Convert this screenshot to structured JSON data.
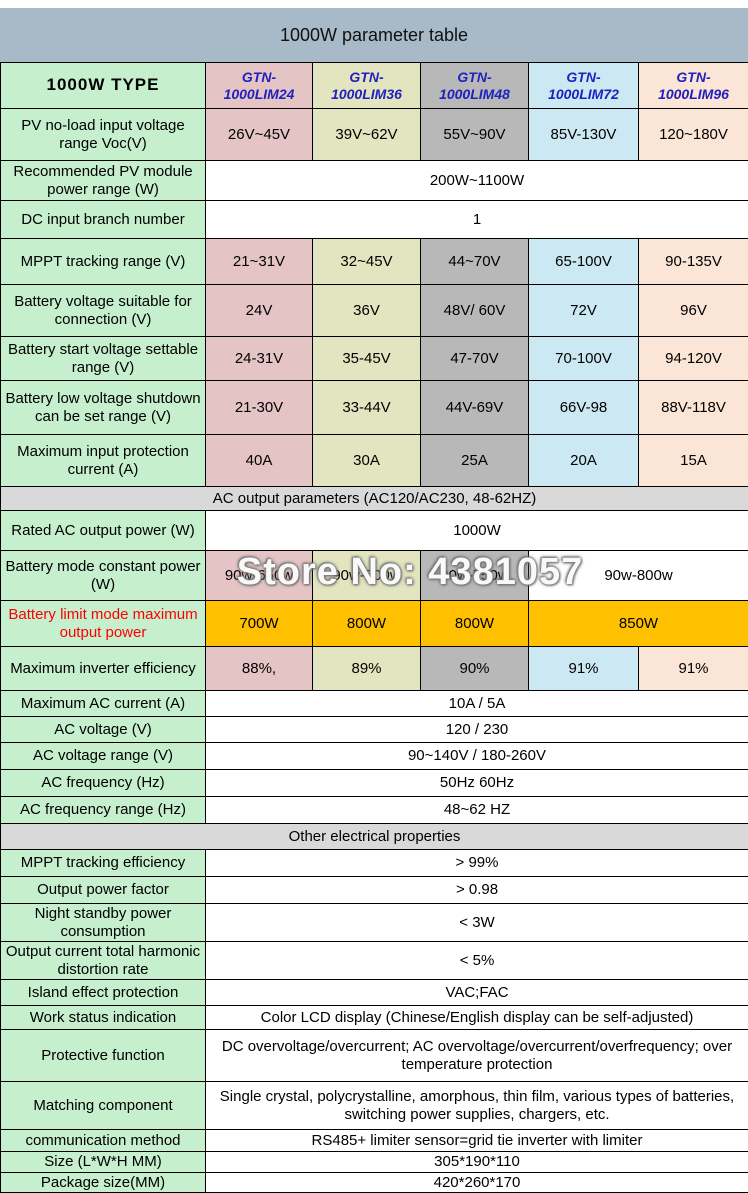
{
  "title": "1000W parameter table",
  "watermark": "Store No: 4381057",
  "colors": {
    "title_bar": "#a8b9c7",
    "label_green": "#c6efce",
    "column_lim24": "#e5c4c6",
    "column_lim36": "#e2e5bf",
    "column_lim48": "#b8b8b8",
    "column_lim72": "#cbe8f3",
    "column_lim96": "#fbe5d6",
    "section_gray": "#d9d9d9",
    "highlight_gold": "#ffc000",
    "model_text_blue": "#2121bd",
    "alert_text_red": "#ff0000"
  },
  "columns": {
    "label_header": "1000W TYPE",
    "models": [
      "GTN-\n1000LIM24",
      "GTN-\n1000LIM36",
      "GTN-\n1000LIM48",
      "GTN-\n1000LIM72",
      "GTN-\n1000LIM96"
    ]
  },
  "rows": [
    {
      "kind": "values",
      "label": "PV no-load input voltage range Voc(V)",
      "values": [
        "26V~45V",
        "39V~62V",
        "55V~90V",
        "85V-130V",
        "120~180V"
      ],
      "h": 52
    },
    {
      "kind": "merged",
      "label": "Recommended PV module power range (W)",
      "value": "200W~1100W",
      "h": 40
    },
    {
      "kind": "merged",
      "label": "DC input branch number",
      "value": "1",
      "h": 38
    },
    {
      "kind": "values",
      "label": "MPPT tracking range (V)",
      "values": [
        "21~31V",
        "32~45V",
        "44~70V",
        "65-100V",
        "90-135V"
      ],
      "h": 46
    },
    {
      "kind": "values",
      "label": "Battery voltage suitable for connection (V)",
      "values": [
        "24V",
        "36V",
        "48V/ 60V",
        "72V",
        "96V"
      ],
      "h": 52
    },
    {
      "kind": "values",
      "label": "Battery start voltage settable range (V)",
      "values": [
        "24-31V",
        "35-45V",
        "47-70V",
        "70-100V",
        "94-120V"
      ],
      "h": 44
    },
    {
      "kind": "values",
      "label": "Battery low voltage shutdown can be set range (V)",
      "values": [
        "21-30V",
        "33-44V",
        "44V-69V",
        "66V-98",
        "88V-118V"
      ],
      "h": 54
    },
    {
      "kind": "values",
      "label": "Maximum input protection current (A)",
      "values": [
        "40A",
        "30A",
        "25A",
        "20A",
        "15A"
      ],
      "h": 52
    },
    {
      "kind": "section",
      "label": "AC output parameters (AC120/AC230, 48-62HZ)",
      "h": 24
    },
    {
      "kind": "merged",
      "label": "Rated AC output power (W)",
      "value": "1000W",
      "h": 40
    },
    {
      "kind": "values",
      "label": "Battery mode constant power (W)",
      "values": [
        "90w-650w",
        "90w-700w",
        "90w-750w"
      ],
      "merged_value": "90w-800w",
      "h": 50
    },
    {
      "kind": "values",
      "label": "Battery limit mode maximum output power",
      "label_style": "red",
      "value_bg": "gold",
      "values": [
        "700W",
        "800W",
        "800W"
      ],
      "merged_value": "850W",
      "h": 46
    },
    {
      "kind": "values",
      "label": "Maximum inverter efficiency",
      "values": [
        "88%,",
        "89%",
        "90%",
        "91%",
        "91%"
      ],
      "h": 44
    },
    {
      "kind": "merged",
      "label": "Maximum AC current (A)",
      "value": "10A / 5A",
      "h": 26
    },
    {
      "kind": "merged",
      "label": "AC voltage (V)",
      "value": "120 / 230",
      "h": 26
    },
    {
      "kind": "merged",
      "label": "AC voltage range (V)",
      "value": "90~140V / 180-260V",
      "h": 27
    },
    {
      "kind": "merged",
      "label": "AC frequency (Hz)",
      "value": "50Hz 60Hz",
      "h": 27
    },
    {
      "kind": "merged",
      "label": "AC frequency range (Hz)",
      "value": "48~62 HZ",
      "h": 27
    },
    {
      "kind": "section",
      "label": "Other electrical properties",
      "h": 26
    },
    {
      "kind": "merged",
      "label": "MPPT tracking efficiency",
      "value": "> 99%",
      "h": 27
    },
    {
      "kind": "merged",
      "label": "Output power factor",
      "value": "> 0.98",
      "h": 27
    },
    {
      "kind": "merged",
      "label": "Night standby power consumption",
      "value": "< 3W",
      "h": 38
    },
    {
      "kind": "merged",
      "label": "Output current total harmonic distortion rate",
      "value": "< 5%",
      "h": 38
    },
    {
      "kind": "merged",
      "label": "Island effect protection",
      "value": "VAC;FAC",
      "h": 26
    },
    {
      "kind": "merged",
      "label": "Work status indication",
      "value": "Color LCD display (Chinese/English display can be self-adjusted)",
      "h": 24
    },
    {
      "kind": "merged",
      "label": "Protective function",
      "value": "DC overvoltage/overcurrent; AC overvoltage/overcurrent/overfrequency; over temperature protection",
      "h": 52
    },
    {
      "kind": "merged",
      "label": "Matching component",
      "value": "Single crystal, polycrystalline, amorphous, thin film, various types of batteries, switching power supplies, chargers, etc.",
      "h": 48
    },
    {
      "kind": "merged",
      "label": "communication method",
      "value": "RS485+ limiter sensor=grid tie inverter with limiter",
      "h": 22
    },
    {
      "kind": "merged",
      "label": "Size (L*W*H MM)",
      "value": "305*190*110",
      "h": 21
    },
    {
      "kind": "merged",
      "label": "Package size(MM)",
      "value": "420*260*170",
      "h": 20
    }
  ]
}
